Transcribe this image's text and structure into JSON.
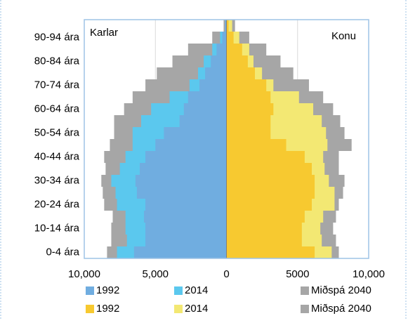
{
  "chart_data": {
    "type": "bar",
    "orientation": "horizontal",
    "categories": [
      "0-4 ára",
      null,
      "10-14 ára",
      null,
      "20-24 ára",
      null,
      "30-34 ára",
      null,
      "40-44 ára",
      null,
      "50-54 ára",
      null,
      "60-64 ára",
      null,
      "70-74 ára",
      null,
      "80-84 ára",
      null,
      "90-94 ára",
      null
    ],
    "annotations": [
      "Karlar",
      "Konu"
    ],
    "xlim": [
      -10000,
      10000
    ],
    "xticks": [
      {
        "value": -10000,
        "label": "10,000"
      },
      {
        "value": -5000,
        "label": "5,000"
      },
      0,
      5000,
      {
        "value": 10000,
        "label": "10,000"
      }
    ],
    "grid": true,
    "series": [
      {
        "name": "Miðspá 2040",
        "color": "#a6a6a6",
        "values": [
          -8400,
          -8100,
          -8100,
          -8000,
          -8600,
          -8700,
          -8800,
          -8500,
          -8600,
          -8200,
          -7900,
          -7900,
          -7200,
          -6600,
          -5700,
          -4900,
          -3800,
          -2700,
          -1000,
          -200
        ]
      },
      {
        "name": "2014",
        "color": "#5bc8ee",
        "values": [
          -7700,
          -7000,
          -7100,
          -7100,
          -7700,
          -7800,
          -8100,
          -7500,
          -7100,
          -6600,
          -6600,
          -6000,
          -5300,
          -4000,
          -2600,
          -2000,
          -1600,
          -1000,
          -450,
          -100
        ]
      },
      {
        "name": "1992",
        "color": "#70ade0",
        "values": [
          -6500,
          -5700,
          -5700,
          -5800,
          -5700,
          -6300,
          -6400,
          -6100,
          -5700,
          -5000,
          -4400,
          -3300,
          -3000,
          -2700,
          -1900,
          -1500,
          -1100,
          -700,
          -300,
          -100
        ]
      },
      {
        "name": "Miðspá 2040",
        "color": "#a6a6a6",
        "values": [
          7900,
          7700,
          7500,
          7700,
          7900,
          8200,
          8300,
          7900,
          7900,
          8800,
          8300,
          8000,
          7500,
          6800,
          5800,
          4700,
          3800,
          2800,
          1600,
          600
        ]
      },
      {
        "name": "2014",
        "color": "#f3e873",
        "values": [
          7400,
          6700,
          6600,
          6800,
          7600,
          7600,
          7200,
          6900,
          6800,
          7100,
          7000,
          6700,
          6100,
          5100,
          3300,
          2500,
          1900,
          1600,
          900,
          400
        ]
      },
      {
        "name": "1992",
        "color": "#f7c930",
        "values": [
          6200,
          5300,
          5300,
          5500,
          6000,
          6200,
          6200,
          6000,
          5500,
          4200,
          3100,
          3100,
          3300,
          3100,
          2800,
          2000,
          1500,
          1100,
          500,
          150
        ]
      }
    ]
  }
}
